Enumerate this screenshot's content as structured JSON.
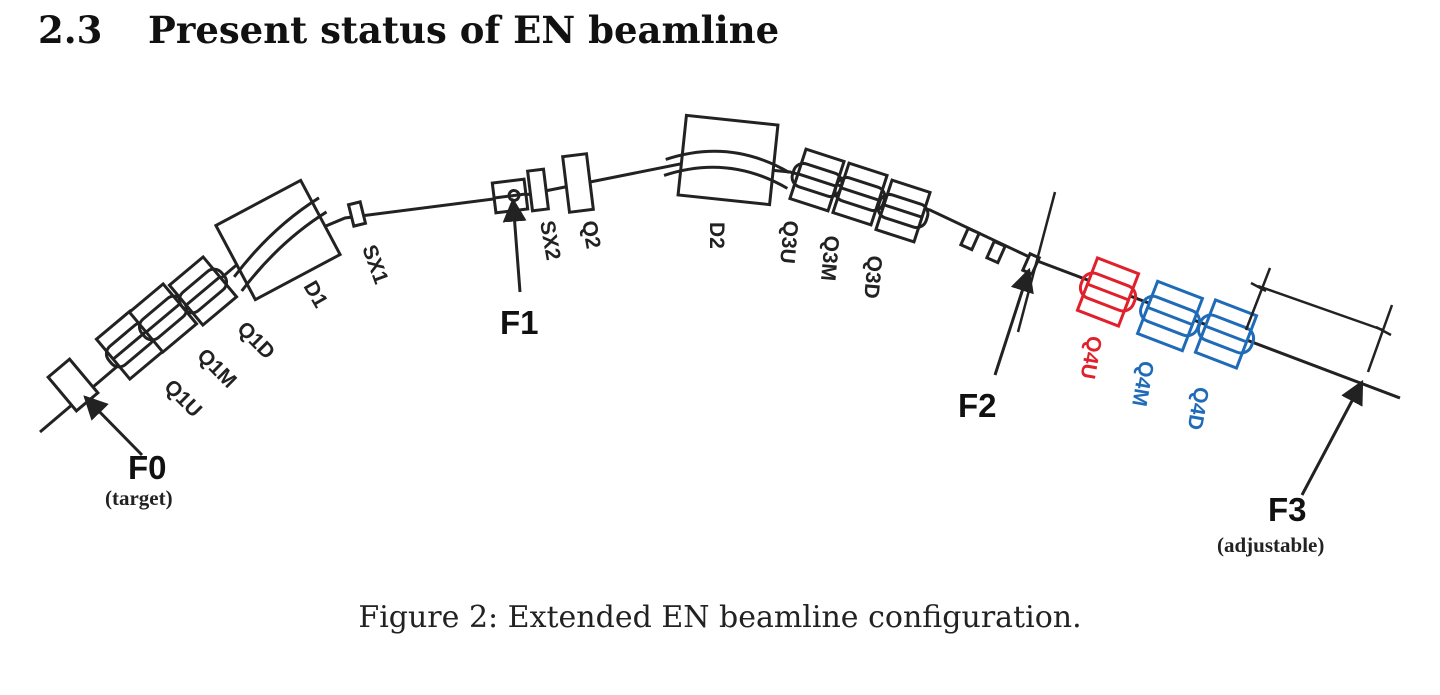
{
  "section": {
    "number": "2.3",
    "title": "Present status of EN beamline"
  },
  "figure": {
    "colors": {
      "ink": "#222222",
      "red": "#e0202a",
      "blue": "#1f6bb8"
    },
    "elements": {
      "q1u": "Q1U",
      "q1m": "Q1M",
      "q1d": "Q1D",
      "d1": "D1",
      "sx1": "SX1",
      "sx2": "SX2",
      "q2": "Q2",
      "d2": "D2",
      "q3u": "Q3U",
      "q3m": "Q3M",
      "q3d": "Q3D",
      "q4u": "Q4U",
      "q4m": "Q4M",
      "q4d": "Q4D"
    },
    "focal_points": {
      "f0": {
        "label": "F0",
        "sub": "(target)"
      },
      "f1": {
        "label": "F1"
      },
      "f2": {
        "label": "F2"
      },
      "f3": {
        "label": "F3",
        "sub": "(adjustable)"
      }
    },
    "caption": "Figure 2: Extended EN beamline configuration."
  }
}
